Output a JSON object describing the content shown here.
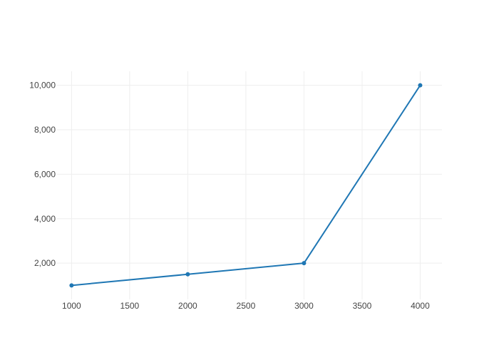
{
  "chart_data": {
    "type": "line",
    "title": "",
    "xlabel": "",
    "ylabel": "",
    "x": [
      1000,
      2000,
      3000,
      4000
    ],
    "series": [
      {
        "values": [
          1000,
          1500,
          2000,
          10000
        ],
        "color": "#1f77b4",
        "mode": "lines+markers"
      }
    ],
    "xlim": [
      875,
      4187.5
    ],
    "ylim": [
      370,
      10630
    ],
    "x_ticks": [
      1000,
      1500,
      2000,
      2500,
      3000,
      3500,
      4000
    ],
    "x_tick_labels": [
      "1000",
      "1500",
      "2000",
      "2500",
      "3000",
      "3500",
      "4000"
    ],
    "y_ticks": [
      2000,
      4000,
      6000,
      8000,
      10000
    ],
    "y_tick_labels": [
      "2,000",
      "4,000",
      "6,000",
      "8,000",
      "10,000"
    ],
    "grid": true,
    "grid_color": "#eeeeee",
    "legend": "none"
  }
}
